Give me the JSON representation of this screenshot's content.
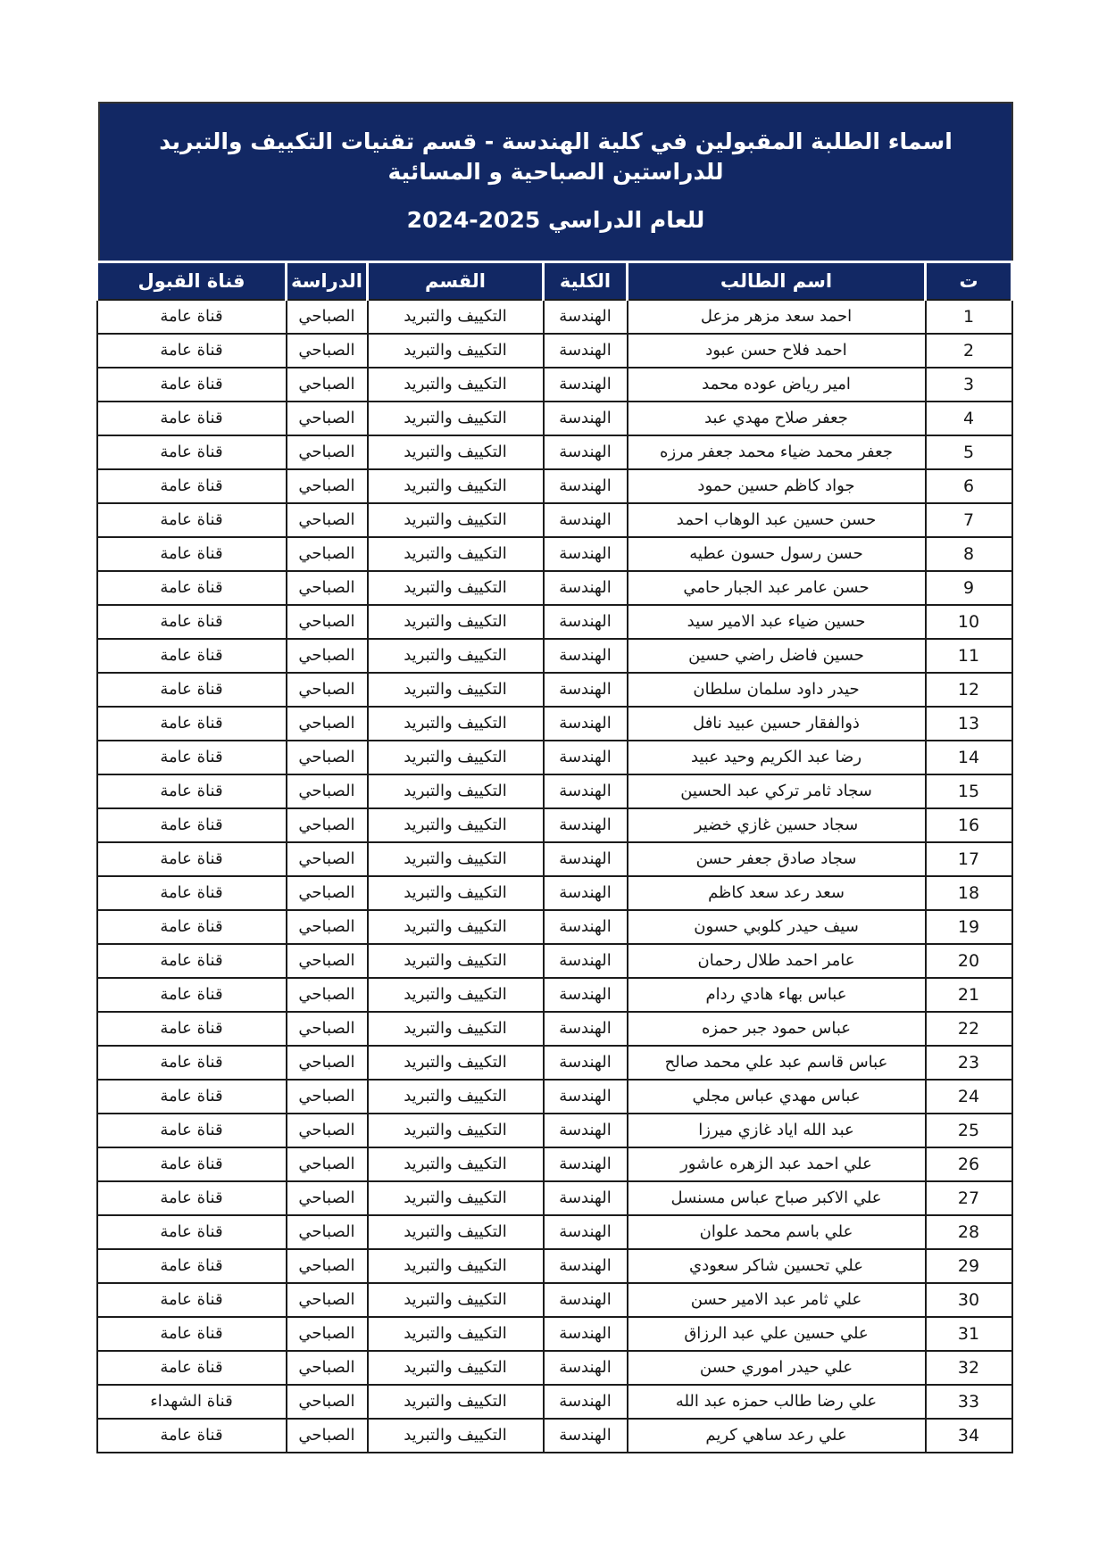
{
  "title": {
    "line1": "اسماء الطلبة المقبولين في كلية الهندسة - قسم تقنيات التكييف والتبريد للدراستين الصباحية و المسائية",
    "line2": "للعام الدراسي 2025-2024"
  },
  "table": {
    "headers": [
      "ت",
      "اسم الطالب",
      "الكلية",
      "القسم",
      "الدراسة",
      "قناة القبول"
    ],
    "rows": [
      {
        "no": "1",
        "name": "احمد سعد مزهر مزعل",
        "college": "الهندسة",
        "department": "التكييف والتبريد",
        "study": "الصباحي",
        "channel": "قناة عامة"
      },
      {
        "no": "2",
        "name": "احمد فلاح حسن عبود",
        "college": "الهندسة",
        "department": "التكييف والتبريد",
        "study": "الصباحي",
        "channel": "قناة عامة"
      },
      {
        "no": "3",
        "name": "امير رياض عوده محمد",
        "college": "الهندسة",
        "department": "التكييف والتبريد",
        "study": "الصباحي",
        "channel": "قناة عامة"
      },
      {
        "no": "4",
        "name": "جعفر صلاح مهدي عبد",
        "college": "الهندسة",
        "department": "التكييف والتبريد",
        "study": "الصباحي",
        "channel": "قناة عامة"
      },
      {
        "no": "5",
        "name": "جعفر محمد ضياء محمد جعفر مرزه",
        "college": "الهندسة",
        "department": "التكييف والتبريد",
        "study": "الصباحي",
        "channel": "قناة عامة"
      },
      {
        "no": "6",
        "name": "جواد كاظم حسين حمود",
        "college": "الهندسة",
        "department": "التكييف والتبريد",
        "study": "الصباحي",
        "channel": "قناة عامة"
      },
      {
        "no": "7",
        "name": "حسن حسين عبد الوهاب احمد",
        "college": "الهندسة",
        "department": "التكييف والتبريد",
        "study": "الصباحي",
        "channel": "قناة عامة"
      },
      {
        "no": "8",
        "name": "حسن رسول حسون عطيه",
        "college": "الهندسة",
        "department": "التكييف والتبريد",
        "study": "الصباحي",
        "channel": "قناة عامة"
      },
      {
        "no": "9",
        "name": "حسن عامر عبد الجبار حامي",
        "college": "الهندسة",
        "department": "التكييف والتبريد",
        "study": "الصباحي",
        "channel": "قناة عامة"
      },
      {
        "no": "10",
        "name": "حسين ضياء عبد الامير سيد",
        "college": "الهندسة",
        "department": "التكييف والتبريد",
        "study": "الصباحي",
        "channel": "قناة عامة"
      },
      {
        "no": "11",
        "name": "حسين فاضل راضي حسين",
        "college": "الهندسة",
        "department": "التكييف والتبريد",
        "study": "الصباحي",
        "channel": "قناة عامة"
      },
      {
        "no": "12",
        "name": "حيدر داود سلمان سلطان",
        "college": "الهندسة",
        "department": "التكييف والتبريد",
        "study": "الصباحي",
        "channel": "قناة عامة"
      },
      {
        "no": "13",
        "name": "ذوالفقار حسين عبيد نافل",
        "college": "الهندسة",
        "department": "التكييف والتبريد",
        "study": "الصباحي",
        "channel": "قناة عامة"
      },
      {
        "no": "14",
        "name": "رضا عبد الكريم وحيد عبيد",
        "college": "الهندسة",
        "department": "التكييف والتبريد",
        "study": "الصباحي",
        "channel": "قناة عامة"
      },
      {
        "no": "15",
        "name": "سجاد ثامر تركي عبد الحسين",
        "college": "الهندسة",
        "department": "التكييف والتبريد",
        "study": "الصباحي",
        "channel": "قناة عامة"
      },
      {
        "no": "16",
        "name": "سجاد حسين غازي خضير",
        "college": "الهندسة",
        "department": "التكييف والتبريد",
        "study": "الصباحي",
        "channel": "قناة عامة"
      },
      {
        "no": "17",
        "name": "سجاد صادق جعفر حسن",
        "college": "الهندسة",
        "department": "التكييف والتبريد",
        "study": "الصباحي",
        "channel": "قناة عامة"
      },
      {
        "no": "18",
        "name": "سعد رعد سعد كاظم",
        "college": "الهندسة",
        "department": "التكييف والتبريد",
        "study": "الصباحي",
        "channel": "قناة عامة"
      },
      {
        "no": "19",
        "name": "سيف حيدر كلوبي حسون",
        "college": "الهندسة",
        "department": "التكييف والتبريد",
        "study": "الصباحي",
        "channel": "قناة عامة"
      },
      {
        "no": "20",
        "name": "عامر احمد طلال رحمان",
        "college": "الهندسة",
        "department": "التكييف والتبريد",
        "study": "الصباحي",
        "channel": "قناة عامة"
      },
      {
        "no": "21",
        "name": "عباس بهاء هادي ردام",
        "college": "الهندسة",
        "department": "التكييف والتبريد",
        "study": "الصباحي",
        "channel": "قناة عامة"
      },
      {
        "no": "22",
        "name": "عباس حمود جبر حمزه",
        "college": "الهندسة",
        "department": "التكييف والتبريد",
        "study": "الصباحي",
        "channel": "قناة عامة"
      },
      {
        "no": "23",
        "name": "عباس قاسم عبد علي محمد صالح",
        "college": "الهندسة",
        "department": "التكييف والتبريد",
        "study": "الصباحي",
        "channel": "قناة عامة"
      },
      {
        "no": "24",
        "name": "عباس مهدي عباس مجلي",
        "college": "الهندسة",
        "department": "التكييف والتبريد",
        "study": "الصباحي",
        "channel": "قناة عامة"
      },
      {
        "no": "25",
        "name": "عبد الله اياد غازي ميرزا",
        "college": "الهندسة",
        "department": "التكييف والتبريد",
        "study": "الصباحي",
        "channel": "قناة عامة"
      },
      {
        "no": "26",
        "name": "علي احمد عبد الزهره عاشور",
        "college": "الهندسة",
        "department": "التكييف والتبريد",
        "study": "الصباحي",
        "channel": "قناة عامة"
      },
      {
        "no": "27",
        "name": "علي الاكبر صباح عباس مسنسل",
        "college": "الهندسة",
        "department": "التكييف والتبريد",
        "study": "الصباحي",
        "channel": "قناة عامة"
      },
      {
        "no": "28",
        "name": "علي باسم محمد علوان",
        "college": "الهندسة",
        "department": "التكييف والتبريد",
        "study": "الصباحي",
        "channel": "قناة عامة"
      },
      {
        "no": "29",
        "name": "علي تحسين شاكر سعودي",
        "college": "الهندسة",
        "department": "التكييف والتبريد",
        "study": "الصباحي",
        "channel": "قناة عامة"
      },
      {
        "no": "30",
        "name": "علي ثامر عبد الامير حسن",
        "college": "الهندسة",
        "department": "التكييف والتبريد",
        "study": "الصباحي",
        "channel": "قناة عامة"
      },
      {
        "no": "31",
        "name": "علي حسين علي عبد الرزاق",
        "college": "الهندسة",
        "department": "التكييف والتبريد",
        "study": "الصباحي",
        "channel": "قناة عامة"
      },
      {
        "no": "32",
        "name": "علي حيدر اموري حسن",
        "college": "الهندسة",
        "department": "التكييف والتبريد",
        "study": "الصباحي",
        "channel": "قناة عامة"
      },
      {
        "no": "33",
        "name": "علي رضا طالب حمزه عبد الله",
        "college": "الهندسة",
        "department": "التكييف والتبريد",
        "study": "الصباحي",
        "channel": "قناة الشهداء"
      },
      {
        "no": "34",
        "name": "علي رعد ساهي كريم",
        "college": "الهندسة",
        "department": "التكييف والتبريد",
        "study": "الصباحي",
        "channel": "قناة عامة"
      }
    ]
  },
  "colors": {
    "header_navy": "#122864",
    "border_black": "#1c1c1c"
  }
}
